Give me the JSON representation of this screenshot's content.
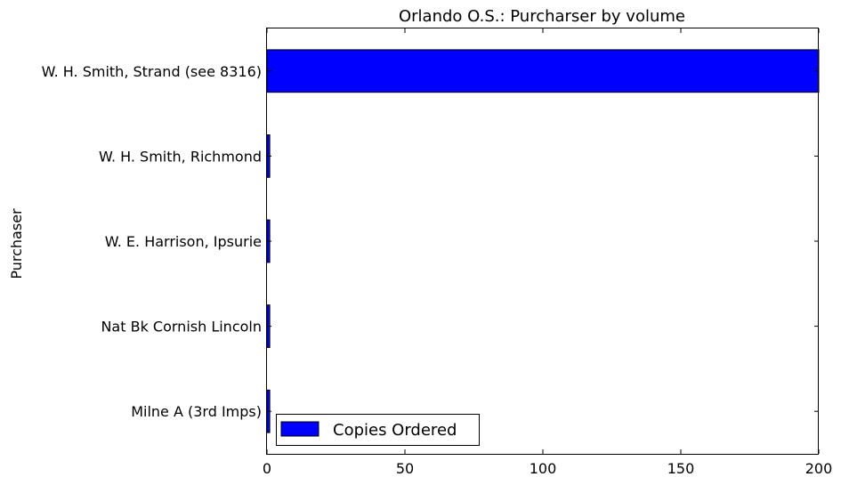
{
  "chart_data": {
    "type": "bar",
    "orientation": "horizontal",
    "title": "Orlando O.S.: Purcharser by volume",
    "xlabel": "",
    "ylabel": "Purchaser",
    "categories": [
      "Milne A (3rd Imps)",
      "Nat Bk Cornish Lincoln",
      "W. E. Harrison, Ipsurie",
      "W. H. Smith, Richmond",
      "W. H. Smith, Strand (see 8316)"
    ],
    "series": [
      {
        "name": "Copies Ordered",
        "color": "#0000ff",
        "values": [
          1,
          1,
          1,
          1,
          200
        ]
      }
    ],
    "xlim": [
      0,
      200
    ],
    "xticks": [
      "0",
      "50",
      "100",
      "150",
      "200"
    ],
    "grid": false,
    "legend_position": "lower-left"
  }
}
